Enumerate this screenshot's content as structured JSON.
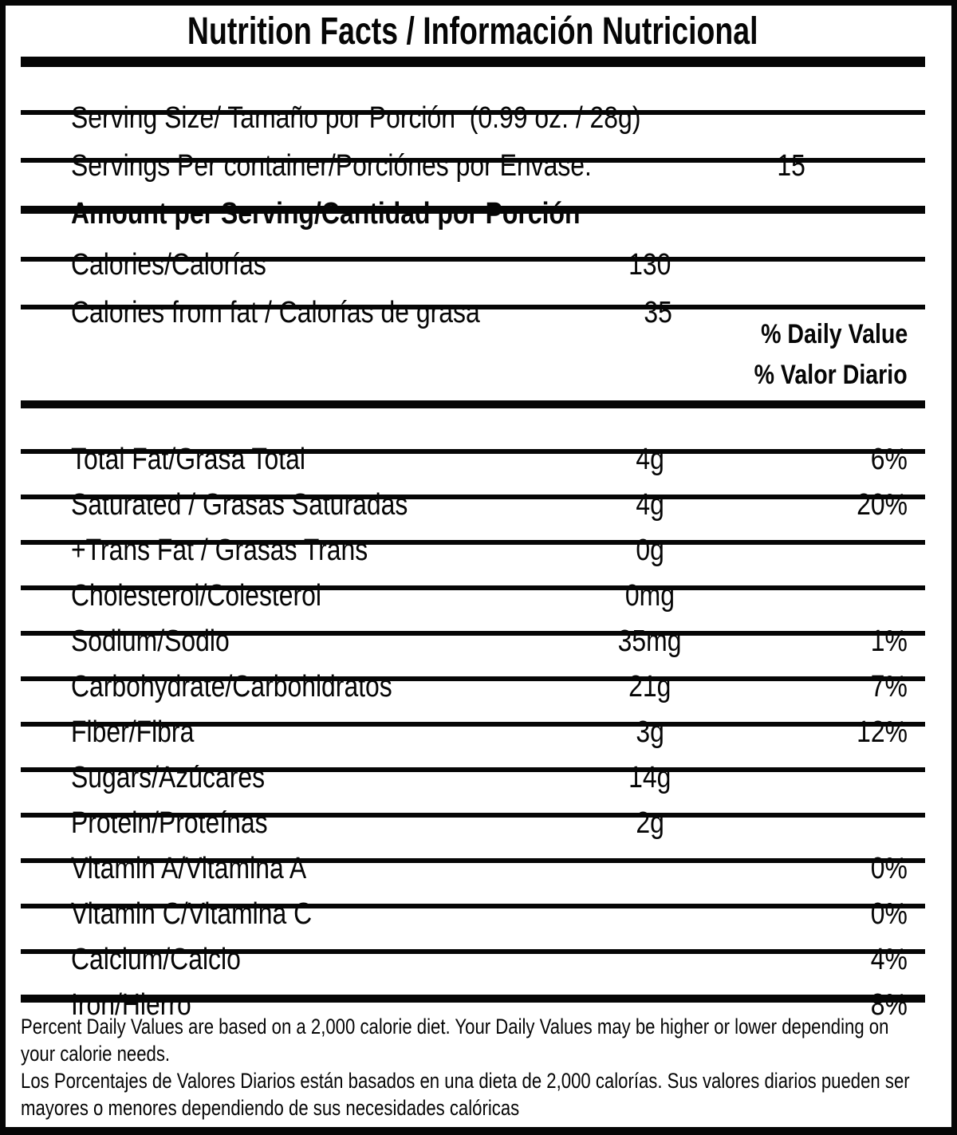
{
  "title": "Nutrition Facts / Información Nutricional",
  "rows_top": [
    {
      "name": "serving-size",
      "label": "Serving Size/ Tamaño por Porción  (0.99 oz. / 28g)",
      "amount": "",
      "pct": ""
    },
    {
      "name": "servings-per-container",
      "label": "Servings Per container/Porciónes por Envase:",
      "amount": "15",
      "pct": ""
    },
    {
      "name": "amount-per-serving",
      "label": "Amount per Serving/Cantidad por Porción",
      "amount": "",
      "pct": "",
      "bold": true,
      "thick": true
    },
    {
      "name": "calories",
      "label": "Calories/Calorías",
      "amount": "130",
      "pct": ""
    },
    {
      "name": "calories-from-fat",
      "label": "Calories from fat / Calorías de grasa",
      "amount": "35",
      "pct": ""
    }
  ],
  "dv_header": {
    "line1": "% Daily Value",
    "line2": "% Valor Diario"
  },
  "rows_main": [
    {
      "name": "total-fat",
      "label": "Total Fat/Grasa Total",
      "amount": "4g",
      "pct": "6%"
    },
    {
      "name": "saturated-fat",
      "label": "Saturated / Grasas Saturadas",
      "amount": "4g",
      "pct": "20%"
    },
    {
      "name": "trans-fat",
      "label": "+Trans Fat / Grasas Trans",
      "amount": "0g",
      "pct": ""
    },
    {
      "name": "cholesterol",
      "label": "Cholesterol/Colesterol",
      "amount": "0mg",
      "pct": ""
    },
    {
      "name": "sodium",
      "label": "Sodium/Sodio",
      "amount": "35mg",
      "pct": "1%"
    },
    {
      "name": "carbohydrate",
      "label": "Carbohydrate/Carbohidratos",
      "amount": "21g",
      "pct": "7%"
    },
    {
      "name": "fiber",
      "label": "Fiber/Fibra",
      "amount": "3g",
      "pct": "12%"
    },
    {
      "name": "sugars",
      "label": "Sugars/Azúcares",
      "amount": "14g",
      "pct": ""
    },
    {
      "name": "protein",
      "label": "Protein/Proteínas",
      "amount": "2g",
      "pct": ""
    },
    {
      "name": "vitamin-a",
      "label": "Vitamin A/Vitamina A",
      "amount": "",
      "pct": "0%"
    },
    {
      "name": "vitamin-c",
      "label": "Vitamin C/Vitamina C",
      "amount": "",
      "pct": "0%"
    },
    {
      "name": "calcium",
      "label": "Calcium/Calcio",
      "amount": "",
      "pct": "4%"
    },
    {
      "name": "iron",
      "label": "Iron/Hierro",
      "amount": "",
      "pct": "8%",
      "thick": true
    }
  ],
  "footnotes": [
    "Percent Daily Values are based on a 2,000 calorie diet. Your Daily Values may be higher or lower depending on your calorie needs.",
    "Los Porcentajes de Valores Diarios están basados en una dieta de 2,000 calorías. Sus valores diarios pueden ser mayores o menores dependiendo de sus necesidades calóricas"
  ],
  "colors": {
    "text": "#060606",
    "background": "#ffffff",
    "border": "#060606"
  }
}
